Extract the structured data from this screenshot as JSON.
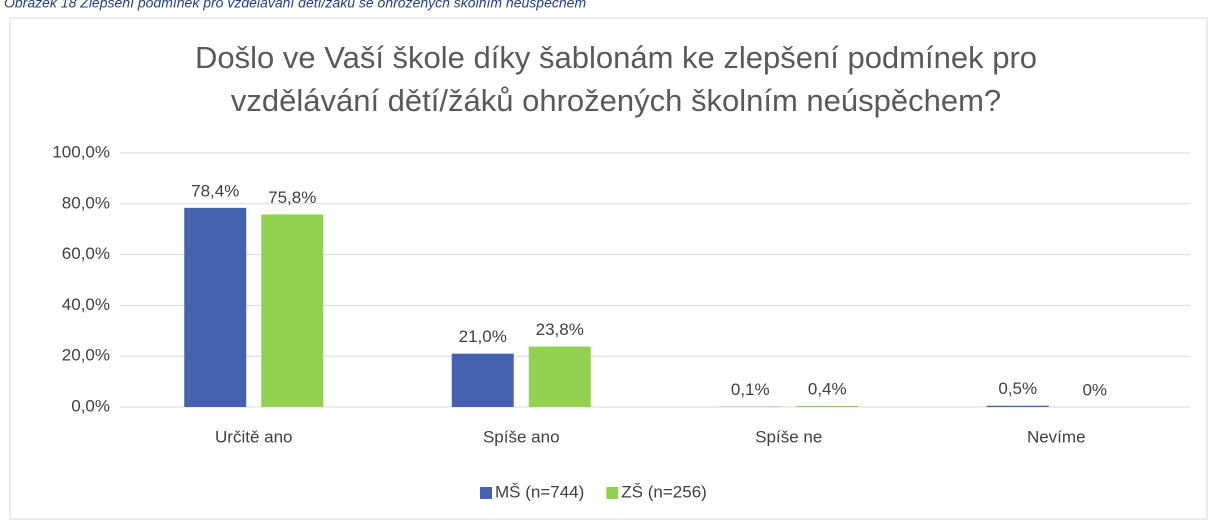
{
  "caption": "Obrázek 18 Zlepšení podmínek pro vzdělávání dětí/žáků se ohrožených školním neúspěchem",
  "chart_data": {
    "type": "bar",
    "title": [
      "Došlo ve Vaší škole díky šablonám ke zlepšení podmínek pro",
      "vzdělávání dětí/žáků ohrožených školním neúspěchem?"
    ],
    "categories": [
      "Určitě ano",
      "Spíše ano",
      "Spíše ne",
      "Nevíme"
    ],
    "series": [
      {
        "name": "MŠ (n=744)",
        "color": "#4462b0",
        "values": [
          78.4,
          21.0,
          0.1,
          0.5
        ],
        "value_labels": [
          "78,4%",
          "21,0%",
          "0,1%",
          "0,5%"
        ]
      },
      {
        "name": "ZŠ (n=256)",
        "color": "#92d050",
        "values": [
          75.8,
          23.8,
          0.4,
          0
        ],
        "value_labels": [
          "75,8%",
          "23,8%",
          "0,4%",
          "0%"
        ]
      }
    ],
    "ylim": [
      0,
      100
    ],
    "yticks": [
      {
        "value": 0,
        "label": "0,0%"
      },
      {
        "value": 20,
        "label": "20,0%"
      },
      {
        "value": 40,
        "label": "40,0%"
      },
      {
        "value": 60,
        "label": "60,0%"
      },
      {
        "value": 80,
        "label": "80,0%"
      },
      {
        "value": 100,
        "label": "100,0%"
      }
    ],
    "grid": true,
    "legend": "bottom"
  }
}
